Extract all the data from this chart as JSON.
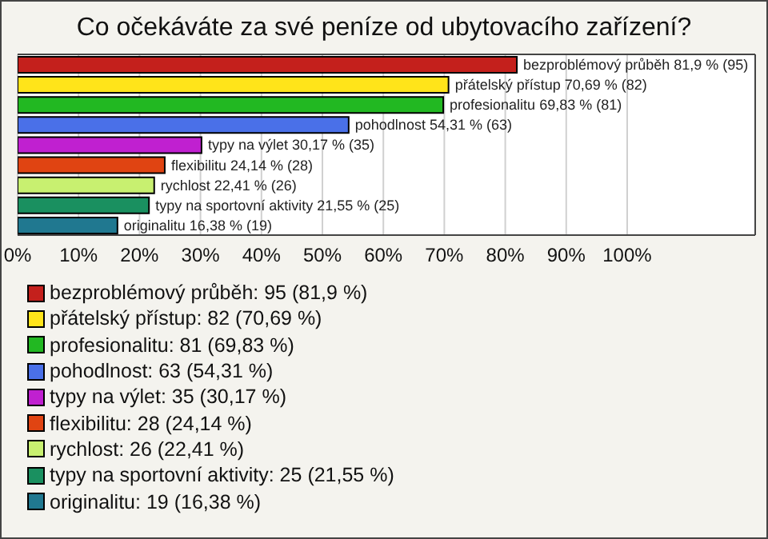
{
  "chart_data": {
    "type": "bar",
    "orientation": "horizontal",
    "stacked": true,
    "title": "Co očekáváte za své peníze od ubytovacího zařízení?",
    "categories": [
      null,
      null,
      null,
      null,
      null,
      null,
      null,
      null,
      null
    ],
    "series": [
      {
        "name": "bezproblémový průběh: 95 (81,9 %)",
        "color": "#c4201c",
        "values": [
          81.9,
          null,
          null,
          null,
          null,
          null,
          null,
          null,
          null
        ],
        "value_labels": [
          "bezproblémový průběh 81,9 % (95)",
          null,
          null,
          null,
          null,
          null,
          null,
          null,
          null
        ]
      },
      {
        "name": "přátelský přístup: 82 (70,69 %)",
        "color": "#ffe41a",
        "values": [
          null,
          70.69,
          null,
          null,
          null,
          null,
          null,
          null,
          null
        ],
        "value_labels": [
          null,
          "přátelský přístup 70,69 % (82)",
          null,
          null,
          null,
          null,
          null,
          null,
          null
        ]
      },
      {
        "name": "profesionalitu: 81 (69,83 %)",
        "color": "#22b822",
        "values": [
          null,
          null,
          69.83,
          null,
          null,
          null,
          null,
          null,
          null
        ],
        "value_labels": [
          null,
          null,
          "profesionalitu 69,83 % (81)",
          null,
          null,
          null,
          null,
          null,
          null
        ]
      },
      {
        "name": "pohodlnost: 63 (54,31 %)",
        "color": "#4a70e8",
        "values": [
          null,
          null,
          null,
          54.31,
          null,
          null,
          null,
          null,
          null
        ],
        "value_labels": [
          null,
          null,
          null,
          "pohodlnost 54,31 % (63)",
          null,
          null,
          null,
          null,
          null
        ]
      },
      {
        "name": "typy na výlet: 35 (30,17 %)",
        "color": "#c020d0",
        "values": [
          null,
          null,
          null,
          null,
          30.17,
          null,
          null,
          null,
          null
        ],
        "value_labels": [
          null,
          null,
          null,
          null,
          "typy na výlet 30,17 % (35)",
          null,
          null,
          null,
          null
        ]
      },
      {
        "name": "flexibilitu: 28 (24,14 %)",
        "color": "#e04412",
        "values": [
          null,
          null,
          null,
          null,
          null,
          24.14,
          null,
          null,
          null
        ],
        "value_labels": [
          null,
          null,
          null,
          null,
          null,
          "flexibilitu 24,14 % (28)",
          null,
          null,
          null
        ]
      },
      {
        "name": "rychlost: 26 (22,41 %)",
        "color": "#c8f070",
        "values": [
          null,
          null,
          null,
          null,
          null,
          null,
          22.41,
          null,
          null
        ],
        "value_labels": [
          null,
          null,
          null,
          null,
          null,
          null,
          "rychlost 22,41 % (26)",
          null,
          null
        ]
      },
      {
        "name": "typy na sportovní aktivity: 25 (21,55 %)",
        "color": "#1a9060",
        "values": [
          null,
          null,
          null,
          null,
          null,
          null,
          null,
          21.55,
          null
        ],
        "value_labels": [
          null,
          null,
          null,
          null,
          null,
          null,
          null,
          "typy na sportovní aktivity 21,55 % (25)",
          null
        ]
      },
      {
        "name": "originalitu: 19 (16,38 %)",
        "color": "#207890",
        "values": [
          null,
          null,
          null,
          null,
          null,
          null,
          null,
          null,
          16.38
        ],
        "value_labels": [
          null,
          null,
          null,
          null,
          null,
          null,
          null,
          null,
          "originalitu 16,38 % (19)"
        ]
      }
    ],
    "xlim": [
      0,
      121
    ],
    "xticks": [
      {
        "value": 0,
        "label": "0%"
      },
      {
        "value": 10,
        "label": "10%"
      },
      {
        "value": 20,
        "label": "20%"
      },
      {
        "value": 30,
        "label": "30%"
      },
      {
        "value": 40,
        "label": "40%"
      },
      {
        "value": 50,
        "label": "50%"
      },
      {
        "value": 60,
        "label": "60%"
      },
      {
        "value": 70,
        "label": "70%"
      },
      {
        "value": 80,
        "label": "80%"
      },
      {
        "value": 90,
        "label": "90%"
      },
      {
        "value": 100,
        "label": "100%"
      }
    ],
    "grid": "x",
    "legend": "bottom",
    "tick_labels": "x"
  }
}
